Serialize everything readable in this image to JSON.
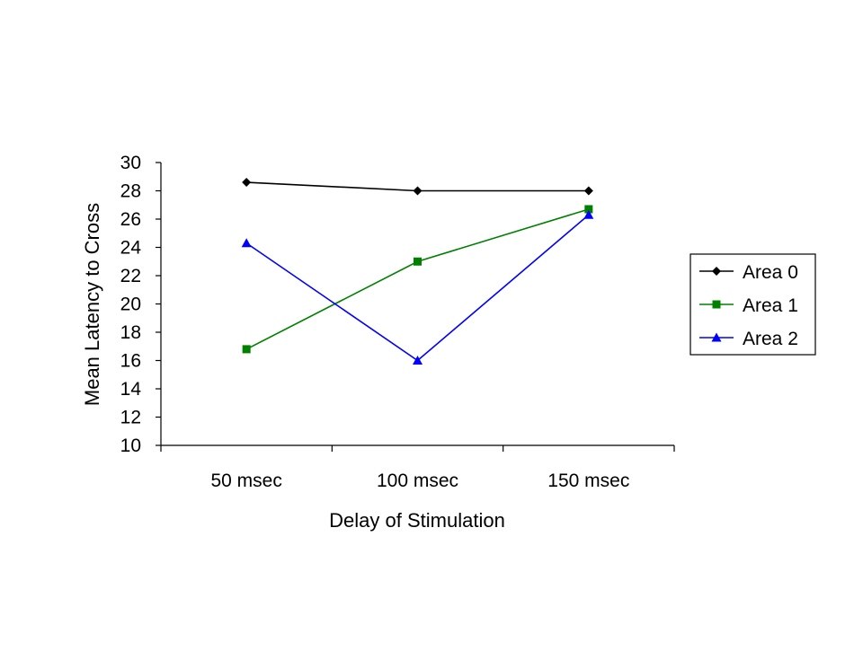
{
  "chart_data": {
    "type": "line",
    "title": "",
    "xlabel": "Delay of Stimulation",
    "ylabel": "Mean Latency to Cross",
    "categories": [
      "50 msec",
      "100 msec",
      "150 msec"
    ],
    "ylim": [
      10,
      30
    ],
    "yticks": [
      10,
      12,
      14,
      16,
      18,
      20,
      22,
      24,
      26,
      28,
      30
    ],
    "grid": false,
    "legend_position": "right",
    "series": [
      {
        "name": "Area 0",
        "values": [
          28.6,
          28.0,
          28.0
        ],
        "color": "#000000",
        "marker": "diamond"
      },
      {
        "name": "Area 1",
        "values": [
          16.8,
          23.0,
          26.7
        ],
        "color": "#008000",
        "marker": "square"
      },
      {
        "name": "Area 2",
        "values": [
          24.3,
          16.0,
          26.3
        ],
        "color": "#0000FF",
        "marker": "triangle"
      }
    ]
  }
}
